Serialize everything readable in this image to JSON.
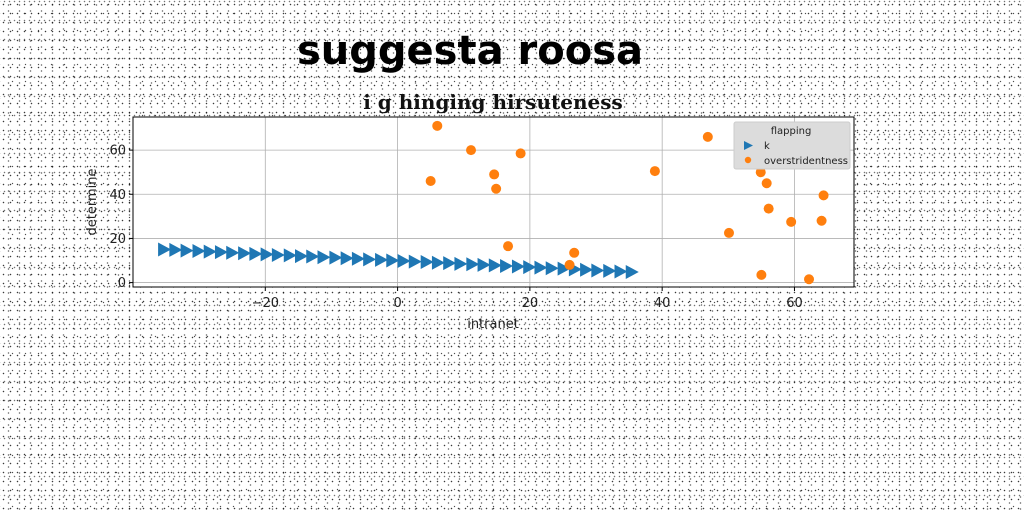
{
  "page": {
    "headline": "suggesta roosa"
  },
  "chart_data": {
    "type": "scatter",
    "title": "i g hinging hirsuteness",
    "xlabel": "intranet",
    "ylabel": "determine",
    "xlim": [
      -40,
      69
    ],
    "ylim": [
      -2,
      75
    ],
    "xticks": [
      -20,
      0,
      20,
      40,
      60
    ],
    "yticks": [
      0,
      20,
      40,
      60
    ],
    "grid": true,
    "legend": {
      "title": "flapping",
      "placement": "top-right"
    },
    "series": [
      {
        "name": "k",
        "marker": "triangle-right",
        "color": "#1f77b4",
        "x": [
          -35.3,
          -33.6,
          -31.9,
          -30.1,
          -28.4,
          -26.7,
          -25.0,
          -23.2,
          -21.5,
          -19.8,
          -18.1,
          -16.3,
          -14.6,
          -12.9,
          -11.2,
          -9.4,
          -7.7,
          -6.0,
          -4.3,
          -2.5,
          -0.8,
          0.9,
          2.6,
          4.4,
          6.1,
          7.8,
          9.5,
          11.3,
          13.0,
          14.7,
          16.4,
          18.2,
          19.9,
          21.6,
          23.3,
          25.1,
          26.8,
          28.5,
          30.2,
          32.0,
          33.7,
          35.4
        ],
        "y": [
          15.0,
          14.8,
          14.5,
          14.3,
          14.0,
          13.8,
          13.5,
          13.3,
          13.0,
          12.8,
          12.5,
          12.3,
          12.0,
          11.8,
          11.5,
          11.3,
          11.0,
          10.8,
          10.5,
          10.3,
          10.0,
          9.8,
          9.5,
          9.3,
          9.0,
          8.8,
          8.5,
          8.3,
          8.0,
          7.8,
          7.5,
          7.3,
          7.0,
          6.8,
          6.5,
          6.3,
          6.0,
          5.8,
          5.5,
          5.3,
          5.0,
          4.8
        ]
      },
      {
        "name": "overstridentness",
        "marker": "circle",
        "color": "#ff7f0e",
        "x": [
          6.0,
          11.1,
          5.0,
          14.6,
          14.9,
          18.6,
          16.7,
          26.7,
          26.0,
          38.9,
          46.9,
          50.1,
          54.9,
          55.8,
          56.1,
          55.0,
          59.5,
          62.2,
          64.1,
          64.4
        ],
        "y": [
          71.0,
          60.0,
          46.0,
          49.0,
          42.5,
          58.5,
          16.5,
          13.5,
          8.0,
          50.5,
          66.0,
          22.5,
          50.0,
          45.0,
          33.5,
          3.5,
          27.5,
          1.5,
          28.0,
          39.5
        ]
      }
    ]
  }
}
